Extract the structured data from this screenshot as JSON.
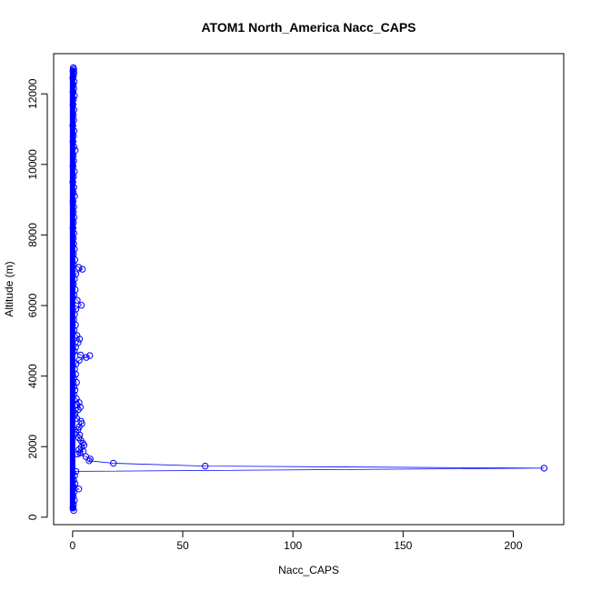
{
  "chart_data": {
    "type": "scatter",
    "title": "ATOM1 North_America Nacc_CAPS",
    "xlabel": "Nacc_CAPS",
    "ylabel": "Altitude (m)",
    "xlim": [
      -8.6,
      222.9
    ],
    "ylim": [
      -210,
      13140
    ],
    "x_ticks": [
      0,
      50,
      100,
      150,
      200
    ],
    "y_ticks": [
      0,
      2000,
      4000,
      6000,
      8000,
      10000,
      12000
    ],
    "grid": false,
    "legend": "none",
    "marker": "open-circle",
    "connected": true,
    "color": "#0000ff",
    "series": [
      {
        "points": [
          [
            0.3,
            12740
          ],
          [
            0.5,
            12700
          ],
          [
            0.2,
            12650
          ],
          [
            0.6,
            12600
          ],
          [
            0.4,
            12520
          ],
          [
            0.1,
            12450
          ],
          [
            0.7,
            12350
          ],
          [
            0.3,
            12250
          ],
          [
            0.5,
            12150
          ],
          [
            0.2,
            12050
          ],
          [
            0.8,
            11950
          ],
          [
            0.4,
            11850
          ],
          [
            0.2,
            11700
          ],
          [
            0.6,
            11550
          ],
          [
            0.3,
            11400
          ],
          [
            0.5,
            11250
          ],
          [
            0.1,
            11100
          ],
          [
            0.7,
            10950
          ],
          [
            0.4,
            10800
          ],
          [
            0.2,
            10650
          ],
          [
            0.6,
            10500
          ],
          [
            1.2,
            10400
          ],
          [
            0.3,
            10250
          ],
          [
            0.5,
            10100
          ],
          [
            0.2,
            9950
          ],
          [
            0.8,
            9800
          ],
          [
            0.4,
            9650
          ],
          [
            0.1,
            9500
          ],
          [
            0.6,
            9350
          ],
          [
            0.3,
            9200
          ],
          [
            0.9,
            9100
          ],
          [
            0.2,
            8950
          ],
          [
            0.5,
            8800
          ],
          [
            0.3,
            8650
          ],
          [
            0.7,
            8500
          ],
          [
            0.4,
            8350
          ],
          [
            0.2,
            8200
          ],
          [
            0.6,
            8050
          ],
          [
            0.3,
            7900
          ],
          [
            0.5,
            7750
          ],
          [
            0.8,
            7600
          ],
          [
            0.4,
            7450
          ],
          [
            1.0,
            7300
          ],
          [
            0.5,
            7150
          ],
          [
            2.8,
            7080
          ],
          [
            4.5,
            7030
          ],
          [
            1.5,
            6900
          ],
          [
            0.8,
            6750
          ],
          [
            0.4,
            6600
          ],
          [
            1.2,
            6450
          ],
          [
            0.6,
            6300
          ],
          [
            2.1,
            6150
          ],
          [
            4.0,
            6010
          ],
          [
            1.5,
            5900
          ],
          [
            0.9,
            5750
          ],
          [
            0.5,
            5600
          ],
          [
            1.3,
            5450
          ],
          [
            0.7,
            5300
          ],
          [
            2.0,
            5150
          ],
          [
            3.1,
            5050
          ],
          [
            2.5,
            4950
          ],
          [
            1.4,
            4820
          ],
          [
            0.8,
            4700
          ],
          [
            3.6,
            4600
          ],
          [
            6.2,
            4530
          ],
          [
            7.8,
            4580
          ],
          [
            3.0,
            4450
          ],
          [
            1.6,
            4350
          ],
          [
            0.9,
            4200
          ],
          [
            1.4,
            4050
          ],
          [
            0.6,
            3950
          ],
          [
            1.8,
            3820
          ],
          [
            0.7,
            3700
          ],
          [
            1.1,
            3600
          ],
          [
            0.5,
            3480
          ],
          [
            1.7,
            3360
          ],
          [
            2.9,
            3250
          ],
          [
            2.0,
            3180
          ],
          [
            3.5,
            3120
          ],
          [
            2.6,
            3050
          ],
          [
            1.2,
            2950
          ],
          [
            0.8,
            2880
          ],
          [
            1.9,
            2800
          ],
          [
            3.8,
            2720
          ],
          [
            4.2,
            2650
          ],
          [
            3.0,
            2560
          ],
          [
            2.4,
            2480
          ],
          [
            1.6,
            2400
          ],
          [
            3.2,
            2330
          ],
          [
            2.8,
            2250
          ],
          [
            3.7,
            2180
          ],
          [
            4.6,
            2100
          ],
          [
            5.2,
            2040
          ],
          [
            3.9,
            1980
          ],
          [
            2.9,
            1920
          ],
          [
            4.8,
            1870
          ],
          [
            3.3,
            1820
          ],
          [
            2.2,
            1790
          ],
          [
            6.0,
            1720
          ],
          [
            8.0,
            1650
          ],
          [
            7.5,
            1600
          ],
          [
            18.5,
            1530
          ],
          [
            60.2,
            1450
          ],
          [
            214.0,
            1390
          ],
          [
            1.5,
            1300
          ],
          [
            0.9,
            1180
          ],
          [
            0.5,
            1050
          ],
          [
            1.1,
            950
          ],
          [
            0.4,
            870
          ],
          [
            2.8,
            800
          ],
          [
            0.6,
            720
          ],
          [
            0.3,
            600
          ],
          [
            0.8,
            480
          ],
          [
            0.4,
            360
          ],
          [
            0.2,
            260
          ],
          [
            0.5,
            190
          ]
        ]
      }
    ]
  }
}
